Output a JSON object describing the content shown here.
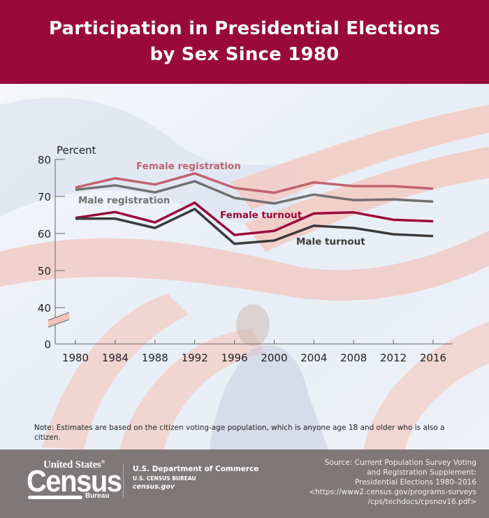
{
  "header": {
    "title_line1": "Participation in Presidential Elections",
    "title_line2": "by Sex Since 1980"
  },
  "colors": {
    "header_bg": "#990a3a",
    "footer_bg": "#7f7878",
    "female_registration": "#c0636f",
    "male_registration": "#727070",
    "female_turnout": "#9b0a3a",
    "male_turnout": "#3d3b3b",
    "axis": "#666666"
  },
  "chart_data": {
    "type": "line",
    "title": "Participation in Presidential Elections by Sex Since 1980",
    "xlabel": "",
    "ylabel": "Percent",
    "x": [
      1980,
      1984,
      1988,
      1992,
      1996,
      2000,
      2004,
      2008,
      2012,
      2016
    ],
    "x_tick_labels": [
      "1980",
      "1984",
      "1988",
      "1992",
      "1996",
      "2000",
      "2004",
      "2008",
      "2012",
      "2016"
    ],
    "y_tick_labels": [
      "0",
      "40",
      "50",
      "60",
      "70",
      "80"
    ],
    "ylim": [
      40,
      80
    ],
    "axis_break": "between 0 and 40",
    "grid": false,
    "legend": "inline labels",
    "series": [
      {
        "name": "Female registration",
        "key": "female_registration",
        "label_text": "Female registration",
        "values": [
          72.4,
          74.9,
          73.2,
          76.2,
          72.3,
          71.0,
          73.8,
          72.8,
          72.8,
          72.1
        ]
      },
      {
        "name": "Male registration",
        "key": "male_registration",
        "label_text": "Male registration",
        "values": [
          71.8,
          73.0,
          71.1,
          74.1,
          69.6,
          68.1,
          70.5,
          69.0,
          69.2,
          68.6
        ]
      },
      {
        "name": "Female turnout",
        "key": "female_turnout",
        "label_text": "Female turnout",
        "values": [
          64.2,
          65.8,
          63.0,
          68.3,
          59.6,
          60.7,
          65.4,
          65.7,
          63.7,
          63.3
        ]
      },
      {
        "name": "Male turnout",
        "key": "male_turnout",
        "label_text": "Male turnout",
        "values": [
          64.0,
          64.0,
          61.5,
          66.6,
          57.2,
          58.1,
          62.1,
          61.5,
          59.8,
          59.3
        ]
      }
    ]
  },
  "note": "Note: Estimates are based on the citizen voting-age population, which is anyone age 18 and older who is also a citizen.",
  "footer": {
    "logo_top": "United States",
    "logo_reg": "®",
    "logo_main": "Census",
    "logo_bottom": "Bureau",
    "dept_line1": "U.S. Department of Commerce",
    "dept_line2": "U.S. CENSUS BUREAU",
    "dept_line3": "census.gov",
    "source_lines": [
      "Source: Current Population Survey Voting",
      "and Registration Supplement:",
      "Presidential Elections 1980–2016",
      "<https://www2.census.gov/programs-surveys",
      "/cps/techdocs/cpsnov16.pdf>"
    ]
  }
}
